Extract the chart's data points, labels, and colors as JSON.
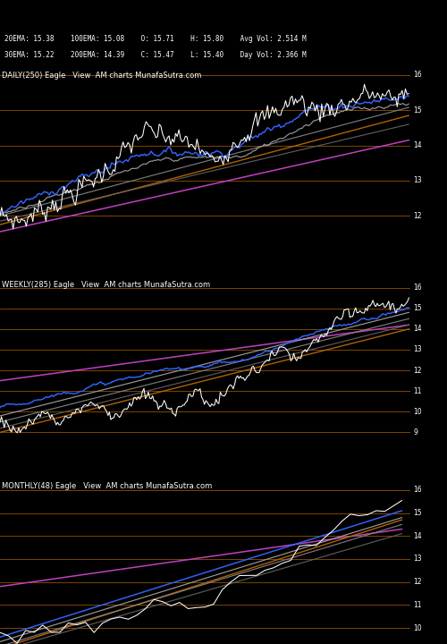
{
  "bg_color": "#000000",
  "title_color": "#ffffff",
  "orange_line_color": "#bb6600",
  "magenta_line_color": "#cc44cc",
  "blue_line_color": "#3366ff",
  "gray1_color": "#aaaaaa",
  "gray2_color": "#888888",
  "gray3_color": "#666666",
  "white_line_color": "#ffffff",
  "price_label_color": "#ffffff",
  "price_label_fontsize": 5.5,
  "panel_label_fontsize": 6.0,
  "header_fontsize": 5.5,
  "hline_color": "#bb6600",
  "hline_alpha": 0.85,
  "hline_lw": 0.55,
  "panel_labels": [
    "DAILY(250) Eagle   View  AM charts MunafaSutra.com",
    "WEEKLY(285) Eagle   View  AM charts MunafaSutra.com",
    "MONTHLY(48) Eagle   View  AM charts MunafaSutra.com"
  ],
  "daily_ylim": [
    11.5,
    16.2
  ],
  "daily_hlines": [
    16,
    15,
    14,
    13,
    12
  ],
  "weekly_ylim": [
    8.5,
    16.5
  ],
  "weekly_hlines": [
    16,
    15,
    14,
    13,
    12,
    11,
    10,
    9
  ],
  "monthly_ylim": [
    9.3,
    16.5
  ],
  "monthly_hlines": [
    16,
    15,
    14,
    13,
    12,
    11,
    10
  ]
}
